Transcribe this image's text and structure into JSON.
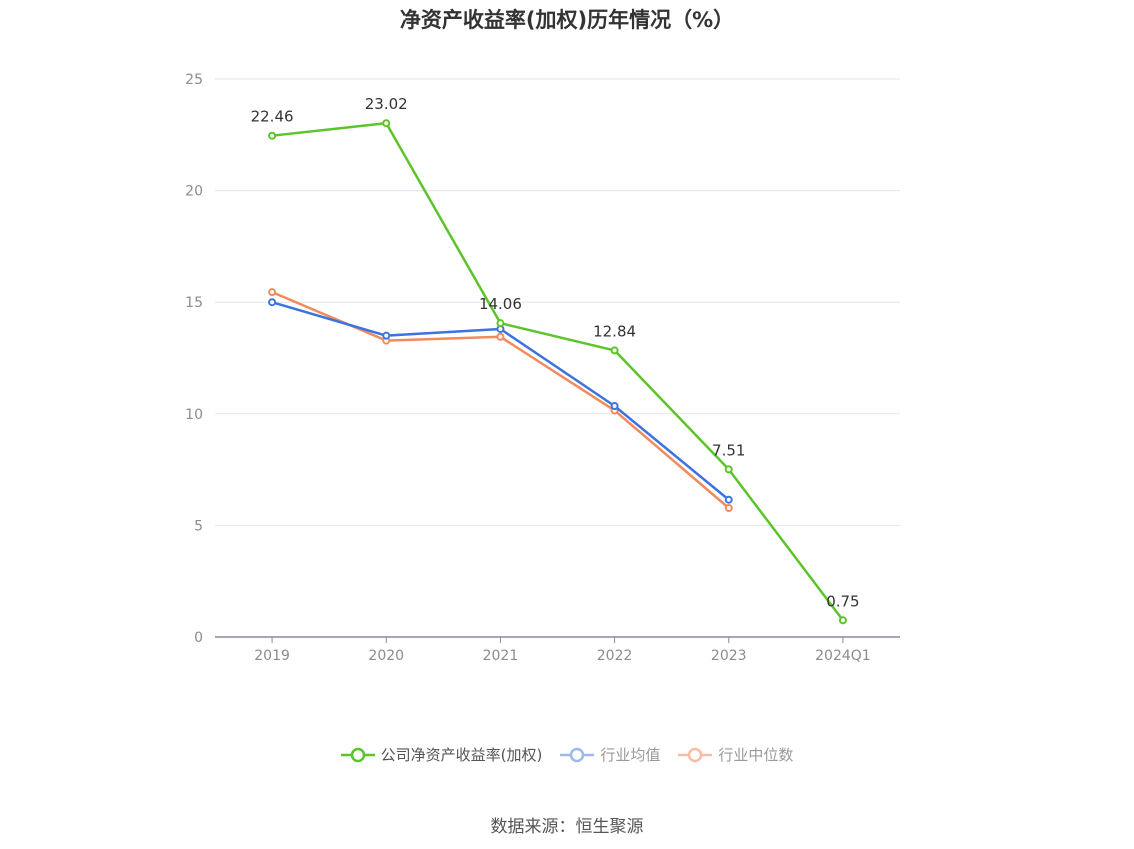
{
  "chart_data": {
    "type": "line",
    "title": "净资产收益率(加权)历年情况（%）",
    "categories": [
      "2019",
      "2020",
      "2021",
      "2022",
      "2023",
      "2024Q1"
    ],
    "ylim": [
      0,
      25
    ],
    "yticks": [
      0,
      5,
      10,
      15,
      20,
      25
    ],
    "grid": true,
    "legend_position": "bottom",
    "series": [
      {
        "name": "公司净资产收益率(加权)",
        "color": "#5cc42b",
        "values": [
          22.46,
          23.02,
          14.06,
          12.84,
          7.51,
          0.75
        ],
        "labels": [
          "22.46",
          "23.02",
          "14.06",
          "12.84",
          "7.51",
          "0.75"
        ]
      },
      {
        "name": "行业均值",
        "color": "#3b74e0",
        "values": [
          15.0,
          13.5,
          13.8,
          10.35,
          6.15,
          null
        ]
      },
      {
        "name": "行业中位数",
        "color": "#f28a5c",
        "values": [
          15.45,
          13.28,
          13.45,
          10.15,
          5.78,
          null
        ]
      }
    ]
  },
  "footer": {
    "source": "数据来源：恒生聚源"
  }
}
